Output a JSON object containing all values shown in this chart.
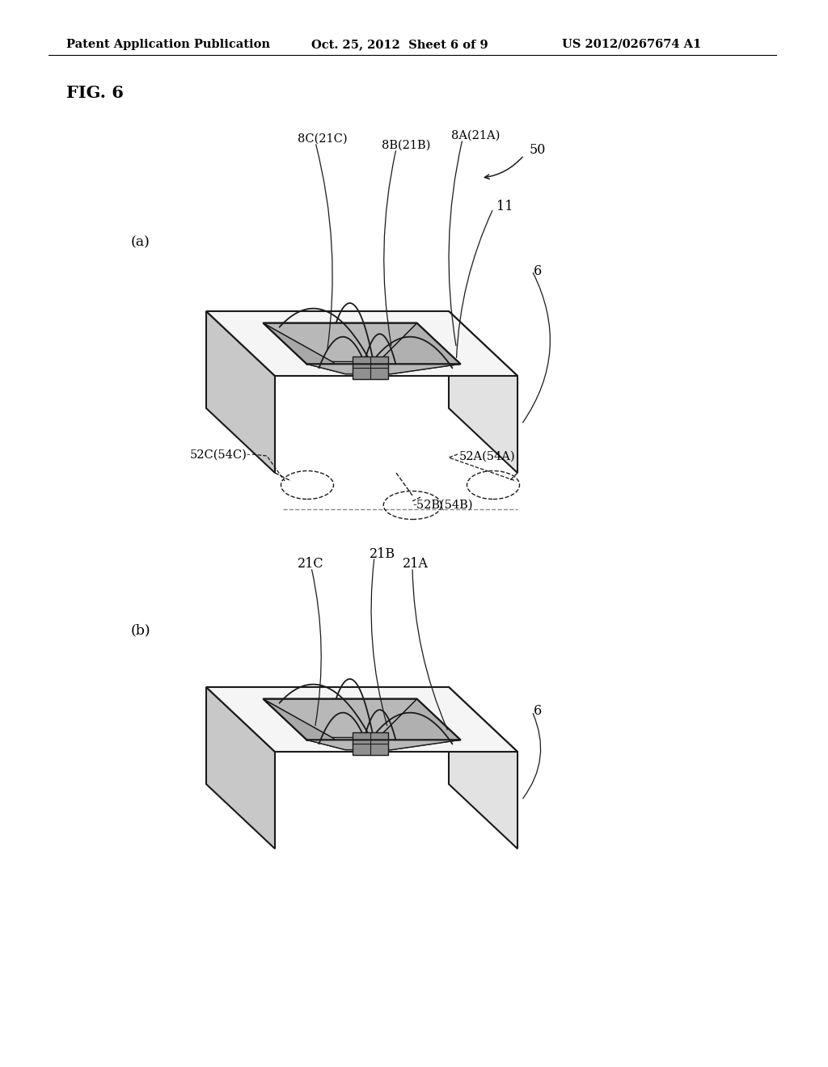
{
  "bg_color": "#ffffff",
  "title_header": "Patent Application Publication",
  "title_date": "Oct. 25, 2012  Sheet 6 of 9",
  "title_patent": "US 2012/0267674 A1",
  "fig_label": "FIG. 6",
  "header_fontsize": 10.5,
  "fig_label_fontsize": 15,
  "label_fontsize": 11.5
}
